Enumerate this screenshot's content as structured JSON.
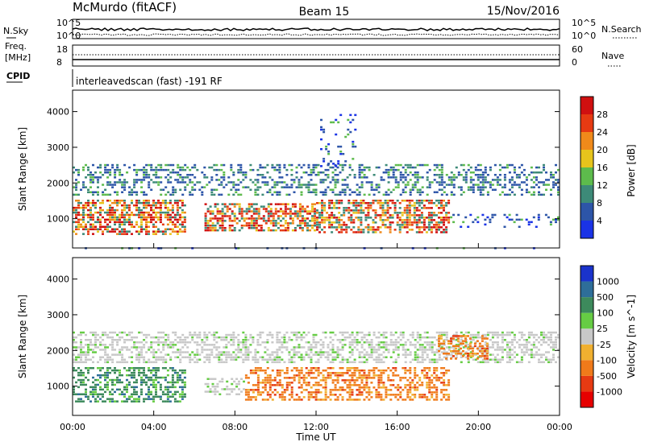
{
  "header": {
    "station": "McMurdo (fitACF)",
    "beam": "Beam 15",
    "date": "15/Nov/2016"
  },
  "summary_panels": {
    "noise": {
      "left_label": "N.Sky",
      "right_label": "N.Search",
      "left_ticks": [
        "10^5",
        "10^0"
      ],
      "right_ticks": [
        "10^5",
        "10^0"
      ]
    },
    "freq": {
      "left_label_line1": "Freq.",
      "left_label_line2": "[MHz]",
      "left_ticks": [
        "18",
        "8"
      ],
      "right_label": "Nave",
      "right_ticks": [
        "60",
        "0"
      ]
    },
    "cpid": {
      "label": "CPID",
      "text": "interleavedscan (fast) -191 RF"
    }
  },
  "chart_data": [
    {
      "type": "heatmap",
      "name": "power",
      "xlabel": "",
      "ylabel": "Slant Range [km]",
      "x_tick_labels": [
        "00:00",
        "04:00",
        "08:00",
        "12:00",
        "16:00",
        "20:00",
        "00:00"
      ],
      "xlim_hours": [
        0,
        24
      ],
      "y_ticks": [
        1000,
        2000,
        3000,
        4000
      ],
      "ylim_km": [
        180,
        4600
      ],
      "colorbar": {
        "label": "Power [dB]",
        "levels": [
          4,
          8,
          12,
          16,
          20,
          24,
          28
        ],
        "colors": [
          "#1a33e6",
          "#2d55a8",
          "#3d8a78",
          "#5dbb4c",
          "#e6c41c",
          "#f08a1a",
          "#e63a12",
          "#d01010"
        ]
      },
      "scatter_bands": [
        {
          "t_start": 0.0,
          "t_end": 5.6,
          "r_min": 600,
          "r_max": 1600,
          "level": "high"
        },
        {
          "t_start": 6.5,
          "t_end": 12.0,
          "r_min": 700,
          "r_max": 1500,
          "level": "high"
        },
        {
          "t_start": 12.0,
          "t_end": 18.6,
          "r_min": 650,
          "r_max": 1600,
          "level": "high"
        },
        {
          "t_start": 18.6,
          "t_end": 24.0,
          "r_min": 800,
          "r_max": 1200,
          "level": "low"
        },
        {
          "t_start": 0.0,
          "t_end": 24.0,
          "r_min": 1700,
          "r_max": 2600,
          "level": "medium"
        },
        {
          "t_start": 12.2,
          "t_end": 14.0,
          "r_min": 2500,
          "r_max": 4000,
          "level": "low"
        },
        {
          "t_start": 0.0,
          "t_end": 24.0,
          "r_min": 200,
          "r_max": 300,
          "level": "low"
        }
      ]
    },
    {
      "type": "heatmap",
      "name": "velocity",
      "xlabel": "Time UT",
      "ylabel": "Slant Range [km]",
      "x_tick_labels": [
        "00:00",
        "04:00",
        "08:00",
        "12:00",
        "16:00",
        "20:00",
        "00:00"
      ],
      "xlim_hours": [
        0,
        24
      ],
      "y_ticks": [
        1000,
        2000,
        3000,
        4000
      ],
      "ylim_km": [
        180,
        4600
      ],
      "colorbar": {
        "label": "Velocity [m s^-1]",
        "levels": [
          1000,
          500,
          100,
          25,
          -25,
          -100,
          -500,
          -1000
        ],
        "colors": [
          "#1a33cc",
          "#2e6e99",
          "#3d8a5c",
          "#66cc44",
          "#c8c8c8",
          "#f0b030",
          "#f07a1a",
          "#e63a12",
          "#e60000"
        ]
      },
      "scatter_bands": [
        {
          "t_start": 0.0,
          "t_end": 5.6,
          "r_min": 600,
          "r_max": 1600,
          "velocity_class": "toward"
        },
        {
          "t_start": 6.5,
          "t_end": 8.5,
          "r_min": 800,
          "r_max": 1300,
          "velocity_class": "near-zero"
        },
        {
          "t_start": 8.5,
          "t_end": 18.6,
          "r_min": 650,
          "r_max": 1600,
          "velocity_class": "away"
        },
        {
          "t_start": 0.0,
          "t_end": 24.0,
          "r_min": 1700,
          "r_max": 2600,
          "velocity_class": "near-zero"
        },
        {
          "t_start": 18.0,
          "t_end": 20.5,
          "r_min": 1800,
          "r_max": 2500,
          "velocity_class": "away"
        }
      ]
    }
  ]
}
